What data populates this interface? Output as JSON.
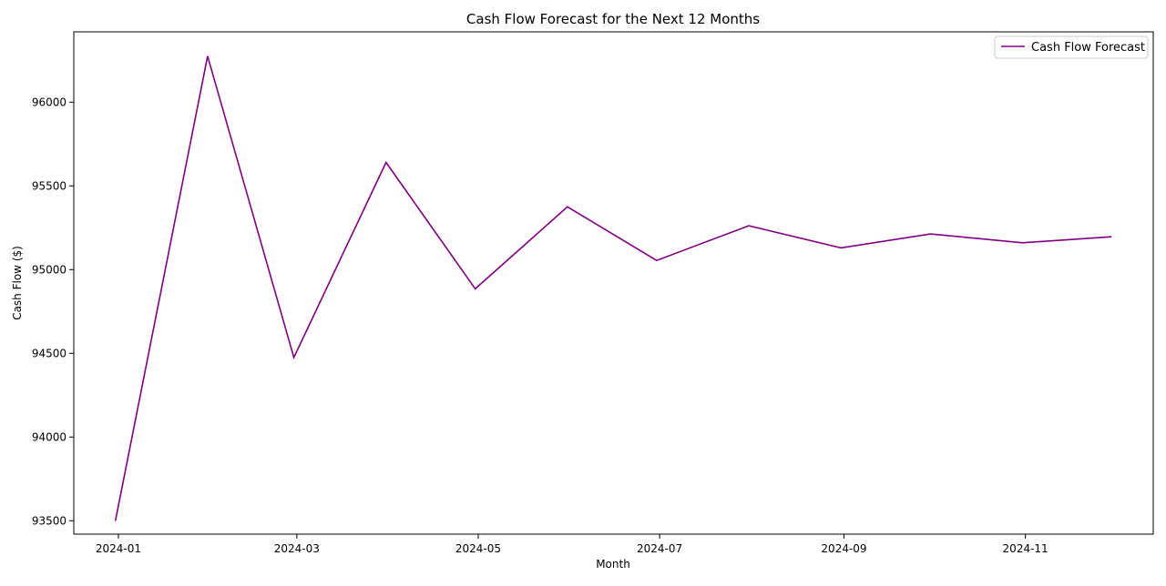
{
  "chart_data": {
    "type": "line",
    "title": "Cash Flow Forecast for the Next 12 Months",
    "xlabel": "Month",
    "ylabel": "Cash Flow ($)",
    "x": [
      "2023-12-31",
      "2024-01-31",
      "2024-02-29",
      "2024-03-31",
      "2024-04-30",
      "2024-05-31",
      "2024-06-30",
      "2024-07-31",
      "2024-08-31",
      "2024-09-30",
      "2024-10-31",
      "2024-11-30"
    ],
    "x_ticks": [
      "2024-01-01",
      "2024-03-01",
      "2024-05-01",
      "2024-07-01",
      "2024-09-01",
      "2024-11-01"
    ],
    "x_tick_labels": [
      "2024-01",
      "2024-03",
      "2024-05",
      "2024-07",
      "2024-09",
      "2024-11"
    ],
    "xlim": [
      "2023-12-17",
      "2024-12-14"
    ],
    "y_ticks": [
      93500,
      94000,
      94500,
      95000,
      95500,
      96000
    ],
    "ylim": [
      93420,
      96420
    ],
    "series": [
      {
        "name": "Cash Flow Forecast",
        "color": "#800080",
        "values": [
          93500,
          96275,
          94475,
          95640,
          94885,
          95375,
          95055,
          95262,
          95130,
          95213,
          95160,
          95196
        ]
      }
    ],
    "grid": false,
    "legend": "top-right"
  }
}
